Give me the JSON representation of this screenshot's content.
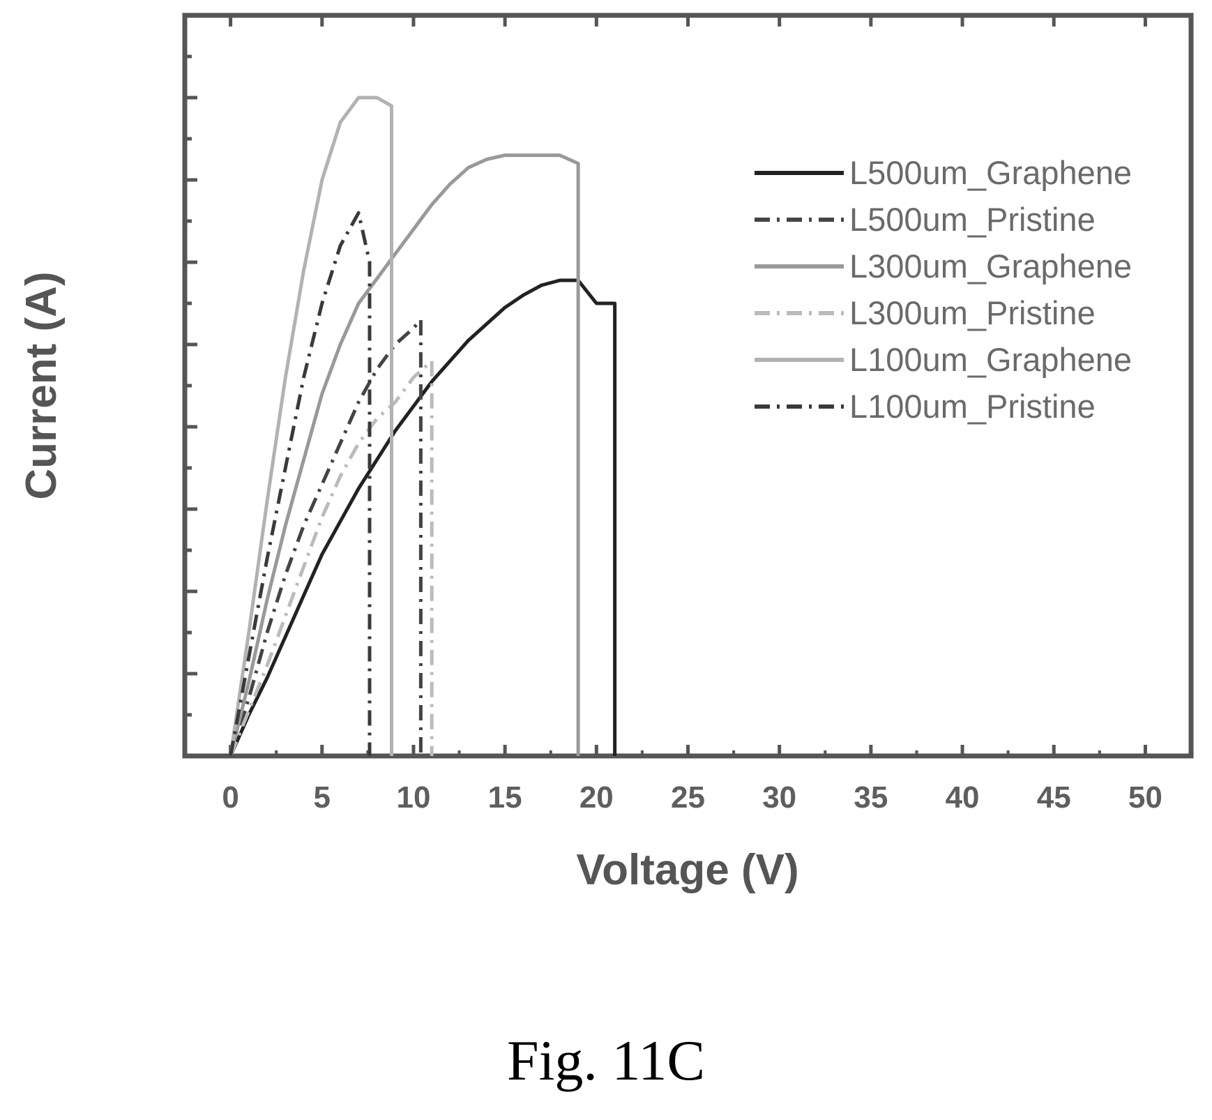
{
  "caption": "Fig. 11C",
  "chart_data": {
    "type": "line",
    "xlabel": "Voltage (V)",
    "ylabel": "Current (A)",
    "xlim": [
      -2.5,
      52.5
    ],
    "ylim": [
      0,
      9
    ],
    "x_ticks": [
      0,
      5,
      10,
      15,
      20,
      25,
      30,
      35,
      40,
      45,
      50
    ],
    "y_tick_labels_shown": false,
    "grid": false,
    "legend_position": "top-right",
    "series": [
      {
        "name": "L500um_Graphene",
        "color": "#222222",
        "dash": "solid",
        "width": 5,
        "points": [
          [
            0,
            0
          ],
          [
            1,
            0.5
          ],
          [
            2,
            0.95
          ],
          [
            3,
            1.45
          ],
          [
            4,
            1.95
          ],
          [
            5,
            2.45
          ],
          [
            6,
            2.85
          ],
          [
            7,
            3.25
          ],
          [
            8,
            3.6
          ],
          [
            9,
            3.95
          ],
          [
            10,
            4.25
          ],
          [
            11,
            4.55
          ],
          [
            12,
            4.8
          ],
          [
            13,
            5.05
          ],
          [
            14,
            5.25
          ],
          [
            15,
            5.45
          ],
          [
            16,
            5.6
          ],
          [
            17,
            5.72
          ],
          [
            18,
            5.78
          ],
          [
            19,
            5.78
          ],
          [
            20,
            5.5
          ],
          [
            21,
            5.5
          ],
          [
            21,
            0
          ]
        ]
      },
      {
        "name": "L500um_Pristine",
        "color": "#444444",
        "dash": "dashdot",
        "width": 5,
        "points": [
          [
            0,
            0
          ],
          [
            1,
            0.7
          ],
          [
            2,
            1.5
          ],
          [
            3,
            2.2
          ],
          [
            4,
            2.8
          ],
          [
            5,
            3.3
          ],
          [
            6,
            3.8
          ],
          [
            7,
            4.3
          ],
          [
            8,
            4.7
          ],
          [
            9,
            5.0
          ],
          [
            10,
            5.2
          ],
          [
            10.4,
            5.3
          ],
          [
            10.4,
            0
          ]
        ]
      },
      {
        "name": "L300um_Graphene",
        "color": "#999999",
        "dash": "solid",
        "width": 5,
        "points": [
          [
            0,
            0
          ],
          [
            1,
            0.9
          ],
          [
            2,
            1.9
          ],
          [
            3,
            2.8
          ],
          [
            4,
            3.6
          ],
          [
            5,
            4.4
          ],
          [
            6,
            5.0
          ],
          [
            7,
            5.5
          ],
          [
            8,
            5.8
          ],
          [
            9,
            6.1
          ],
          [
            10,
            6.4
          ],
          [
            11,
            6.7
          ],
          [
            12,
            6.95
          ],
          [
            13,
            7.15
          ],
          [
            14,
            7.25
          ],
          [
            15,
            7.3
          ],
          [
            16,
            7.3
          ],
          [
            17,
            7.3
          ],
          [
            18,
            7.3
          ],
          [
            19,
            7.2
          ],
          [
            19,
            0
          ]
        ]
      },
      {
        "name": "L300um_Pristine",
        "color": "#bbbbbb",
        "dash": "dashdot",
        "width": 5,
        "points": [
          [
            0,
            0
          ],
          [
            1,
            0.55
          ],
          [
            2,
            1.1
          ],
          [
            3,
            1.7
          ],
          [
            4,
            2.3
          ],
          [
            5,
            2.9
          ],
          [
            6,
            3.4
          ],
          [
            7,
            3.8
          ],
          [
            8,
            4.1
          ],
          [
            9,
            4.3
          ],
          [
            10,
            4.6
          ],
          [
            11,
            4.8
          ],
          [
            11,
            0
          ]
        ]
      },
      {
        "name": "L100um_Graphene",
        "color": "#b2b2b2",
        "dash": "solid",
        "width": 5,
        "points": [
          [
            0,
            0
          ],
          [
            1,
            1.5
          ],
          [
            2,
            3.1
          ],
          [
            3,
            4.6
          ],
          [
            4,
            5.9
          ],
          [
            5,
            7.0
          ],
          [
            6,
            7.7
          ],
          [
            7,
            8.0
          ],
          [
            8,
            8.0
          ],
          [
            8.8,
            7.9
          ],
          [
            8.8,
            0
          ]
        ]
      },
      {
        "name": "L100um_Pristine",
        "color": "#3a3a3a",
        "dash": "dashdot",
        "width": 5,
        "points": [
          [
            0,
            0
          ],
          [
            1,
            1.2
          ],
          [
            2,
            2.4
          ],
          [
            3,
            3.5
          ],
          [
            4,
            4.6
          ],
          [
            5,
            5.5
          ],
          [
            6,
            6.2
          ],
          [
            7,
            6.6
          ],
          [
            7.6,
            6.0
          ],
          [
            7.6,
            0
          ]
        ]
      }
    ]
  }
}
